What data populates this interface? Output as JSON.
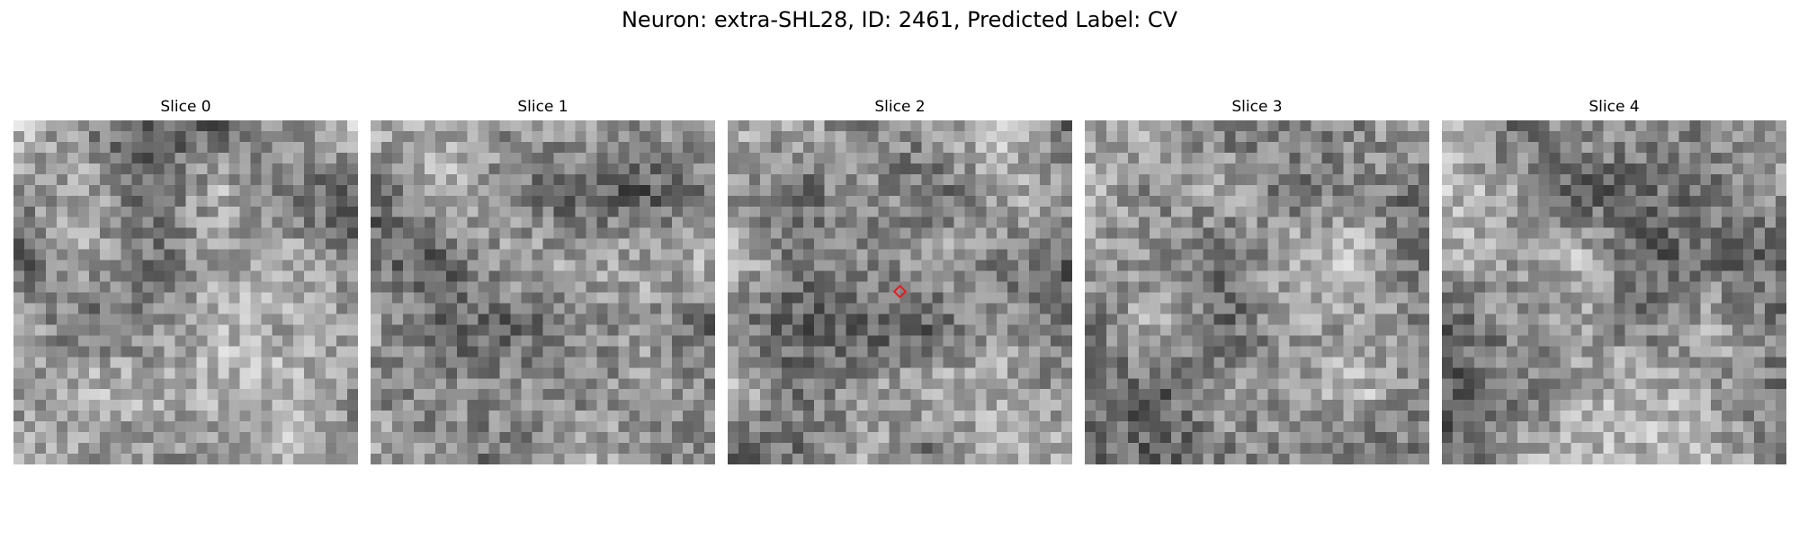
{
  "figure": {
    "title": "Neuron: extra-SHL28, ID: 2461, Predicted Label: CV"
  },
  "panels": [
    {
      "title": "Slice 0",
      "seed": 11,
      "marker": false
    },
    {
      "title": "Slice 1",
      "seed": 23,
      "marker": false
    },
    {
      "title": "Slice 2",
      "seed": 37,
      "marker": true
    },
    {
      "title": "Slice 3",
      "seed": 51,
      "marker": false
    },
    {
      "title": "Slice 4",
      "seed": 67,
      "marker": false
    }
  ],
  "image": {
    "grid": 32,
    "colormap": "gray",
    "marker_color": "#e8191f",
    "marker_shape": "diamond"
  }
}
